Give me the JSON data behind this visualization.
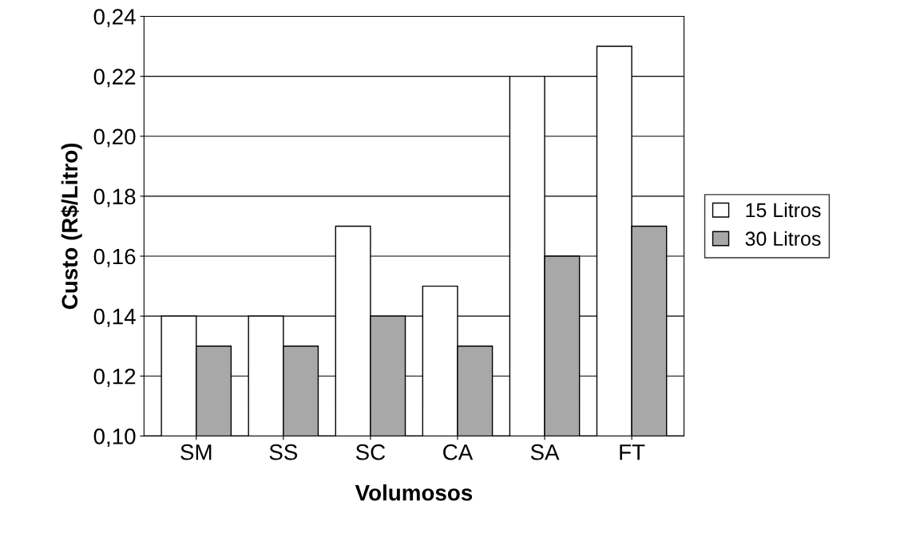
{
  "chart_data": {
    "type": "bar",
    "xlabel": "Volumosos",
    "ylabel": "Custo (R$/Litro)",
    "categories": [
      "SM",
      "SS",
      "SC",
      "CA",
      "SA",
      "FT"
    ],
    "series": [
      {
        "name": "15 Litros",
        "color": "#ffffff",
        "values": [
          0.14,
          0.14,
          0.17,
          0.15,
          0.22,
          0.23
        ]
      },
      {
        "name": "30 Litros",
        "color": "#a8a8a8",
        "values": [
          0.13,
          0.13,
          0.14,
          0.13,
          0.16,
          0.17
        ]
      }
    ],
    "ylim": [
      0.1,
      0.24
    ],
    "yticks": [
      {
        "value": 0.1,
        "label": "0,10"
      },
      {
        "value": 0.12,
        "label": "0,12"
      },
      {
        "value": 0.14,
        "label": "0,14"
      },
      {
        "value": 0.16,
        "label": "0,16"
      },
      {
        "value": 0.18,
        "label": "0,18"
      },
      {
        "value": 0.2,
        "label": "0,20"
      },
      {
        "value": 0.22,
        "label": "0,22"
      },
      {
        "value": 0.24,
        "label": "0,24"
      }
    ],
    "grid": "y",
    "legend": "right"
  }
}
